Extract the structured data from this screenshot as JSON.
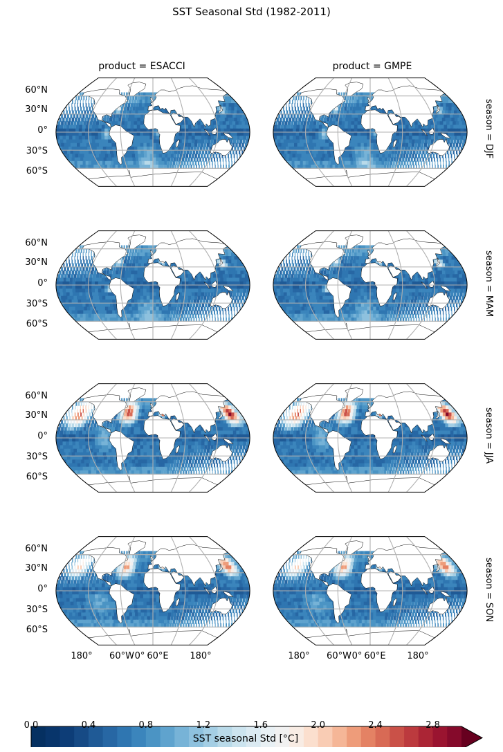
{
  "figure": {
    "title": "SST Seasonal Std (1982-2011)"
  },
  "columns": [
    "product = ESACCI",
    "product = GMPE"
  ],
  "rows": [
    "season = DJF",
    "season = MAM",
    "season = JJA",
    "season = SON"
  ],
  "lat_ticks": [
    "60°N",
    "30°N",
    "0°",
    "30°S",
    "60°S"
  ],
  "lon_ticks": [
    "180°",
    "60°W",
    "0°",
    "60°E",
    "180°"
  ],
  "colorbar": {
    "label": "SST seasonal Std [°C]",
    "ticks": [
      "0.0",
      "0.4",
      "0.8",
      "1.2",
      "1.6",
      "2.0",
      "2.4",
      "2.8"
    ],
    "vmin": 0.0,
    "vmax": 3.0,
    "levels": 30,
    "extend": "max",
    "colormap": "RdBu_r"
  },
  "colors": {
    "palette": [
      "#053061",
      "#08356b",
      "#0d3d77",
      "#164a85",
      "#1f5a96",
      "#2767a4",
      "#2f76b1",
      "#3b85bc",
      "#4b94c4",
      "#5fa3ce",
      "#77b3d7",
      "#8ec1de",
      "#a4cee4",
      "#b9dae9",
      "#cce4ef",
      "#dbeaf2",
      "#e8f0f4",
      "#f1f1f1",
      "#f8ece4",
      "#fbdfce",
      "#f9ccb4",
      "#f5b697",
      "#ee9c7a",
      "#e48264",
      "#d86a55",
      "#ca5148",
      "#bc3a3e",
      "#ab2535",
      "#9a1430",
      "#850a2b",
      "#67001f"
    ],
    "land": "#ffffff",
    "grid": "#b0b0b0",
    "coast": "#000000"
  }
}
